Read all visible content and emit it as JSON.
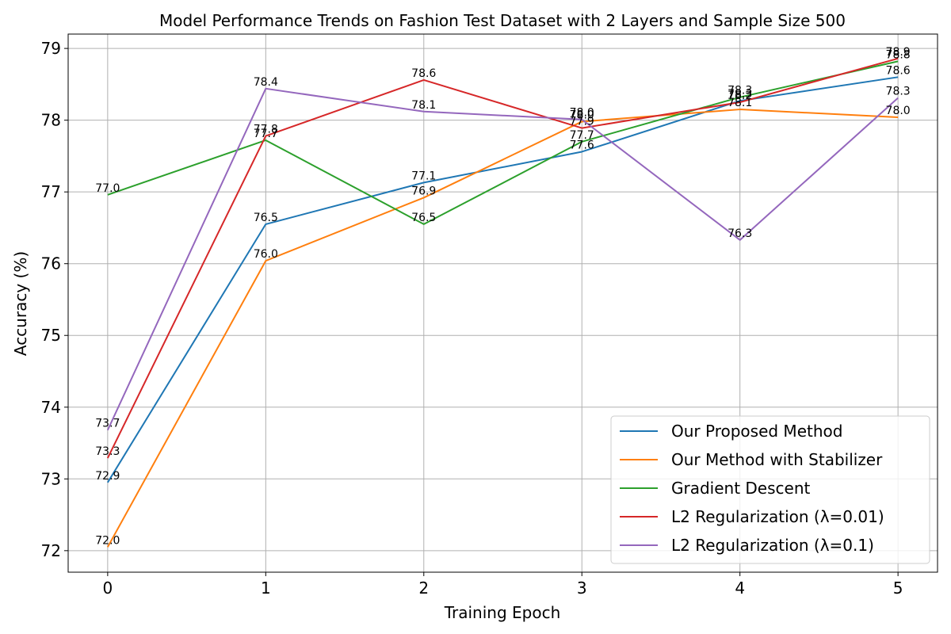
{
  "chart_data": {
    "type": "line",
    "title": "Model Performance Trends on Fashion Test Dataset with 2 Layers and Sample Size 500",
    "xlabel": "Training Epoch",
    "ylabel": "Accuracy (%)",
    "x": [
      0,
      1,
      2,
      3,
      4,
      5
    ],
    "xlim": [
      -0.25,
      5.25
    ],
    "ylim": [
      71.7,
      79.2
    ],
    "xticks": [
      "0",
      "1",
      "2",
      "3",
      "4",
      "5"
    ],
    "yticks": [
      "72",
      "73",
      "74",
      "75",
      "76",
      "77",
      "78",
      "79"
    ],
    "grid": true,
    "legend_position": "bottom-right",
    "series": [
      {
        "name": "Our Proposed Method",
        "color": "#1f77b4",
        "values": [
          72.95,
          76.55,
          77.13,
          77.56,
          78.27,
          78.6
        ],
        "labels": [
          "72.9",
          "76.5",
          "77.1",
          "77.6",
          "78.3",
          "78.6"
        ]
      },
      {
        "name": "Our Method with Stabilizer",
        "color": "#ff7f0e",
        "values": [
          72.05,
          76.04,
          76.92,
          77.98,
          78.15,
          78.04
        ],
        "labels": [
          "72.0",
          "76.0",
          "76.9",
          "78.0",
          "78.1",
          "78.0"
        ]
      },
      {
        "name": "Gradient Descent",
        "color": "#2ca02c",
        "values": [
          76.96,
          77.72,
          76.55,
          77.7,
          78.32,
          78.82
        ],
        "labels": [
          "77.0",
          "77.7",
          "76.5",
          "77.7",
          "78.3",
          "78.8"
        ]
      },
      {
        "name": "L2 Regularization (λ=0.01)",
        "color": "#d62728",
        "values": [
          73.29,
          77.78,
          78.56,
          77.89,
          78.25,
          78.86
        ],
        "labels": [
          "73.3",
          "77.8",
          "78.6",
          "77.9",
          "78.2",
          "78.9"
        ]
      },
      {
        "name": "L2 Regularization (λ=0.1)",
        "color": "#9467bd",
        "values": [
          73.68,
          78.44,
          78.12,
          78.01,
          76.33,
          78.31
        ],
        "labels": [
          "73.7",
          "78.4",
          "78.1",
          "78.0",
          "76.3",
          "78.3"
        ]
      }
    ]
  }
}
